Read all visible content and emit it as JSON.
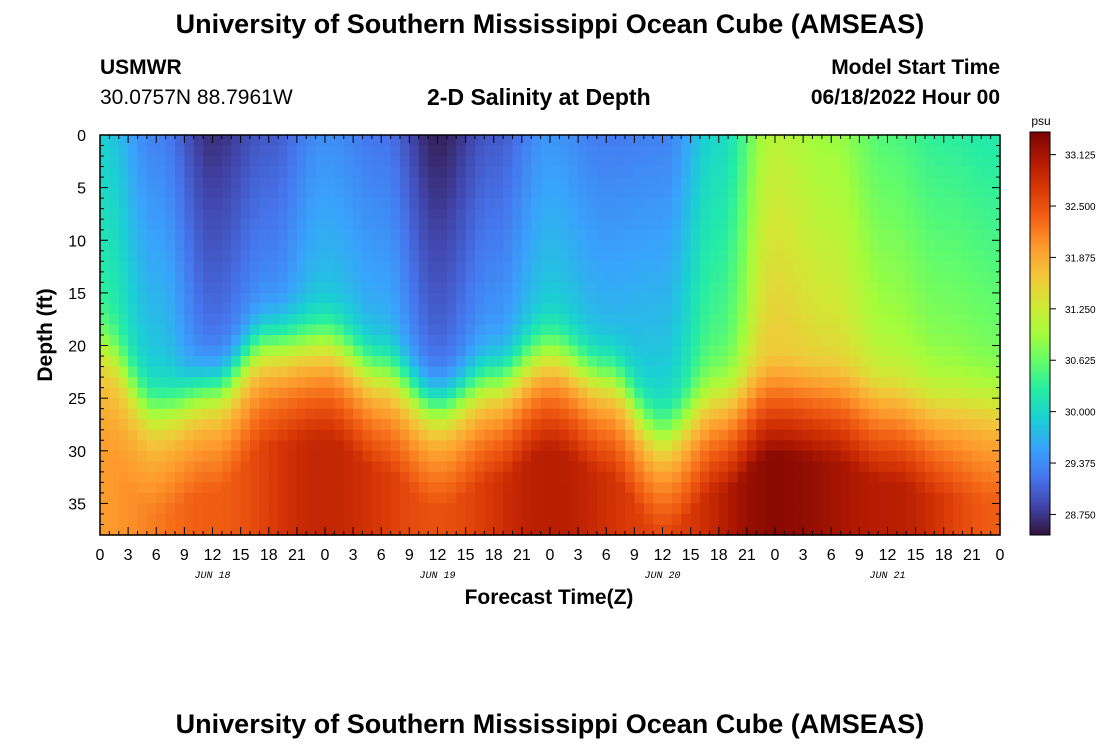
{
  "header": {
    "title": "University of Southern Mississippi Ocean Cube (AMSEAS)",
    "station": "USMWR",
    "coords": "30.0757N  88.7961W",
    "subtitle": "2-D Salinity at Depth",
    "model_label": "Model Start Time",
    "model_time": "06/18/2022 Hour 00"
  },
  "footer": {
    "title": "University of Southern Mississippi Ocean Cube (AMSEAS)"
  },
  "chart_data": {
    "type": "heatmap",
    "title": "2-D Salinity at Depth",
    "xlabel": "Forecast Time(Z)",
    "ylabel": "Depth (ft)",
    "x_unit": "forecast hour",
    "xlim": [
      0,
      96
    ],
    "ylim": [
      0,
      38
    ],
    "x_tick_labels": [
      "0",
      "3",
      "6",
      "9",
      "12",
      "15",
      "18",
      "21",
      "0",
      "3",
      "6",
      "9",
      "12",
      "15",
      "18",
      "21",
      "0",
      "3",
      "6",
      "9",
      "12",
      "15",
      "18",
      "21",
      "0",
      "3",
      "6",
      "9",
      "12",
      "15",
      "18",
      "21",
      "0"
    ],
    "y_ticks": [
      0,
      5,
      10,
      15,
      20,
      25,
      30,
      35
    ],
    "date_labels": [
      {
        "label": "JUN 18",
        "hour": 12
      },
      {
        "label": "JUN 19",
        "hour": 36
      },
      {
        "label": "JUN 20",
        "hour": 60
      },
      {
        "label": "JUN 21",
        "hour": 84
      }
    ],
    "colorbar": {
      "unit": "psu",
      "min": 28.5,
      "max": 33.4,
      "ticks": [
        "33.125",
        "32.500",
        "31.875",
        "31.250",
        "30.625",
        "30.000",
        "29.375",
        "28.750"
      ],
      "colors": [
        "#30123b",
        "#4145ab",
        "#4675ed",
        "#39a2fc",
        "#1bcfd4",
        "#24eca6",
        "#61fc6c",
        "#a4fc3b",
        "#d1e834",
        "#f3c63a",
        "#fe9b2d",
        "#f36315",
        "#d93806",
        "#b11901",
        "#7a0402"
      ]
    },
    "surface_salinity": [
      {
        "hour": 0,
        "value": 29.9
      },
      {
        "hour": 6,
        "value": 29.3
      },
      {
        "hour": 12,
        "value": 28.7
      },
      {
        "hour": 18,
        "value": 29.0
      },
      {
        "hour": 24,
        "value": 29.4
      },
      {
        "hour": 30,
        "value": 29.2
      },
      {
        "hour": 36,
        "value": 28.6
      },
      {
        "hour": 42,
        "value": 29.0
      },
      {
        "hour": 48,
        "value": 29.45
      },
      {
        "hour": 54,
        "value": 29.25
      },
      {
        "hour": 60,
        "value": 29.3
      },
      {
        "hour": 66,
        "value": 30.0
      },
      {
        "hour": 72,
        "value": 31.1
      },
      {
        "hour": 78,
        "value": 30.9
      },
      {
        "hour": 84,
        "value": 30.5
      },
      {
        "hour": 90,
        "value": 30.3
      },
      {
        "hour": 96,
        "value": 30.2
      }
    ],
    "halocline_depth_ft": [
      {
        "hour": 0,
        "value": 20
      },
      {
        "hour": 6,
        "value": 26
      },
      {
        "hour": 12,
        "value": 24
      },
      {
        "hour": 18,
        "value": 19.5
      },
      {
        "hour": 24,
        "value": 19
      },
      {
        "hour": 30,
        "value": 22
      },
      {
        "hour": 36,
        "value": 25.5
      },
      {
        "hour": 42,
        "value": 23
      },
      {
        "hour": 48,
        "value": 20
      },
      {
        "hour": 54,
        "value": 22.5
      },
      {
        "hour": 60,
        "value": 28
      },
      {
        "hour": 66,
        "value": 24
      },
      {
        "hour": 72,
        "value": 20.5
      },
      {
        "hour": 78,
        "value": 21
      },
      {
        "hour": 84,
        "value": 23
      },
      {
        "hour": 90,
        "value": 24.5
      },
      {
        "hour": 96,
        "value": 25
      }
    ],
    "bottom_salinity": [
      {
        "hour": 0,
        "value": 32.0
      },
      {
        "hour": 12,
        "value": 32.4
      },
      {
        "hour": 24,
        "value": 32.9
      },
      {
        "hour": 36,
        "value": 32.5
      },
      {
        "hour": 48,
        "value": 33.0
      },
      {
        "hour": 60,
        "value": 32.6
      },
      {
        "hour": 72,
        "value": 33.3
      },
      {
        "hour": 84,
        "value": 33.0
      },
      {
        "hour": 96,
        "value": 32.4
      }
    ]
  }
}
